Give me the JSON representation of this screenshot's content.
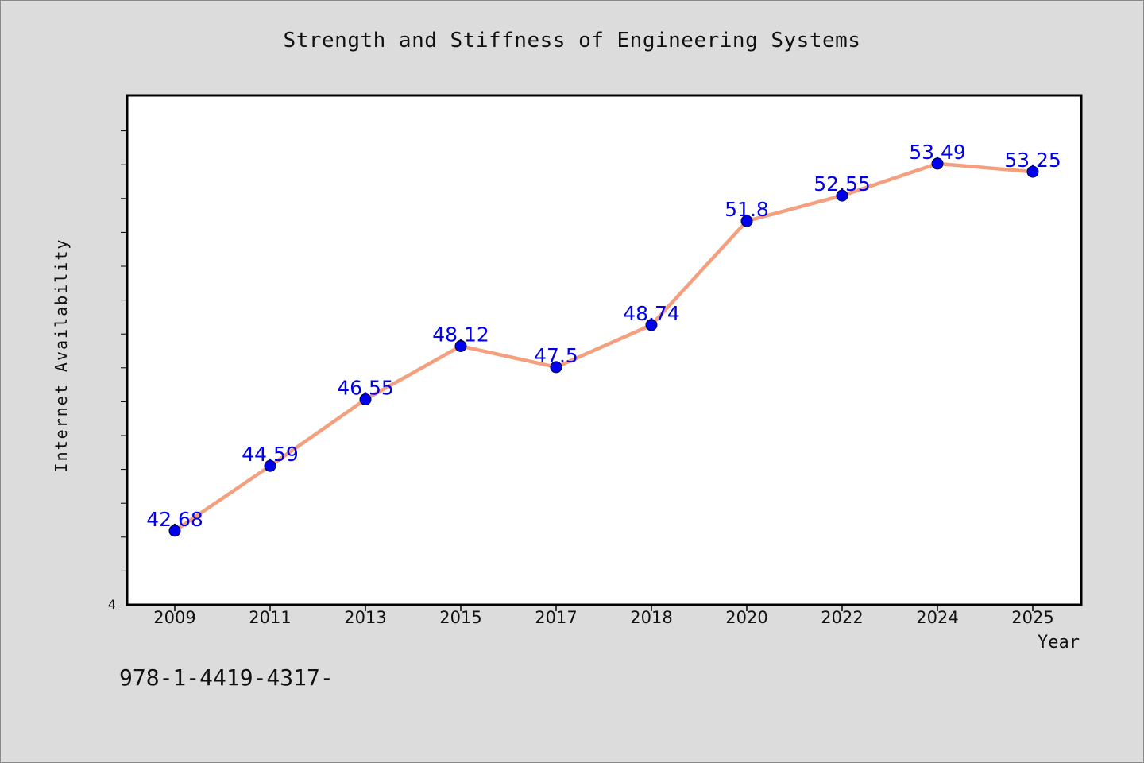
{
  "chart_data": {
    "type": "line",
    "title": "Strength and Stiffness of Engineering Systems",
    "xlabel": "Year",
    "ylabel": "Internet Availability",
    "categories": [
      "2009",
      "2011",
      "2013",
      "2015",
      "2017",
      "2018",
      "2020",
      "2022",
      "2024",
      "2025"
    ],
    "values": [
      42.68,
      44.59,
      46.55,
      48.12,
      47.5,
      48.74,
      51.8,
      52.55,
      53.49,
      53.25
    ],
    "data_labels": [
      "42.68",
      "44.59",
      "46.55",
      "48.12",
      "47.5",
      "48.74",
      "51.8",
      "52.55",
      "53.49",
      "53.25"
    ],
    "y_tick_labels": [
      "4"
    ],
    "ylim": [
      40.5,
      55.5
    ],
    "grid": false,
    "legend": "none",
    "line_color": "#f4a07f",
    "marker_color": "#0000ee",
    "label_color": "#0000ee"
  },
  "footer": {
    "code": "978-1-4419-4317-"
  }
}
